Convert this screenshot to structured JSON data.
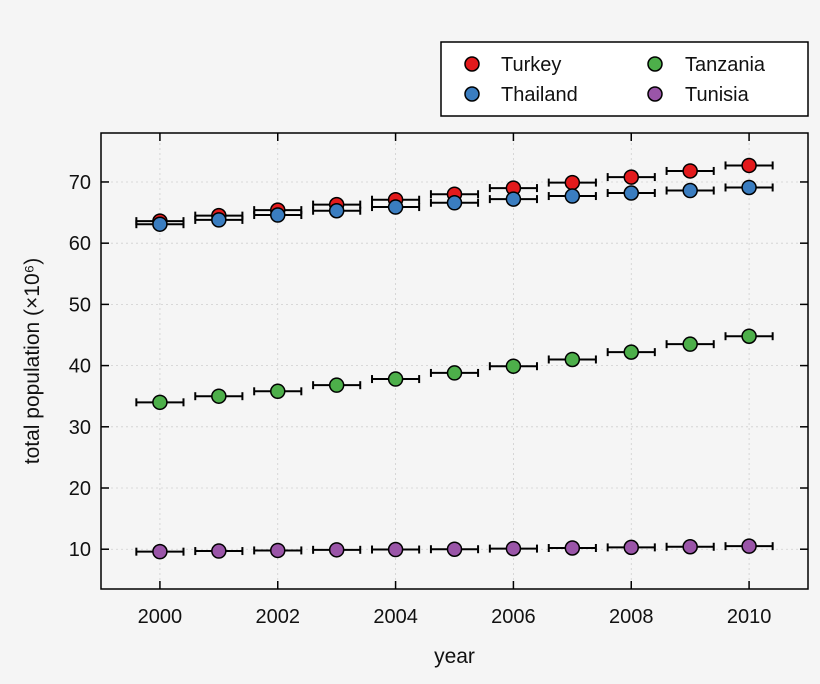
{
  "chart_data": {
    "type": "scatter",
    "xlabel": "year",
    "ylabel": "total population (×10⁶)",
    "xlim": [
      1999,
      2011
    ],
    "ylim": [
      3.5,
      78
    ],
    "xticks": [
      2000,
      2002,
      2004,
      2006,
      2008,
      2010
    ],
    "yticks": [
      10,
      20,
      30,
      40,
      50,
      60,
      70
    ],
    "grid": true,
    "legend_position": "top-right, above plot",
    "x_error": 0.4,
    "x": [
      2000,
      2001,
      2002,
      2003,
      2004,
      2005,
      2006,
      2007,
      2008,
      2009,
      2010
    ],
    "series": [
      {
        "name": "Turkey",
        "color": "#e31a1c",
        "values": [
          63.6,
          64.5,
          65.4,
          66.3,
          67.1,
          68.0,
          69.0,
          69.9,
          70.8,
          71.8,
          72.7
        ]
      },
      {
        "name": "Thailand",
        "color": "#3a7dc0",
        "values": [
          63.1,
          63.8,
          64.6,
          65.3,
          65.9,
          66.6,
          67.2,
          67.7,
          68.2,
          68.6,
          69.1
        ]
      },
      {
        "name": "Tanzania",
        "color": "#4daf4a",
        "values": [
          34.0,
          35.0,
          35.8,
          36.8,
          37.8,
          38.8,
          39.9,
          41.0,
          42.2,
          43.5,
          44.8
        ]
      },
      {
        "name": "Tunisia",
        "color": "#9a55a8",
        "values": [
          9.6,
          9.7,
          9.8,
          9.9,
          9.95,
          10.0,
          10.1,
          10.2,
          10.3,
          10.4,
          10.5
        ]
      }
    ]
  }
}
